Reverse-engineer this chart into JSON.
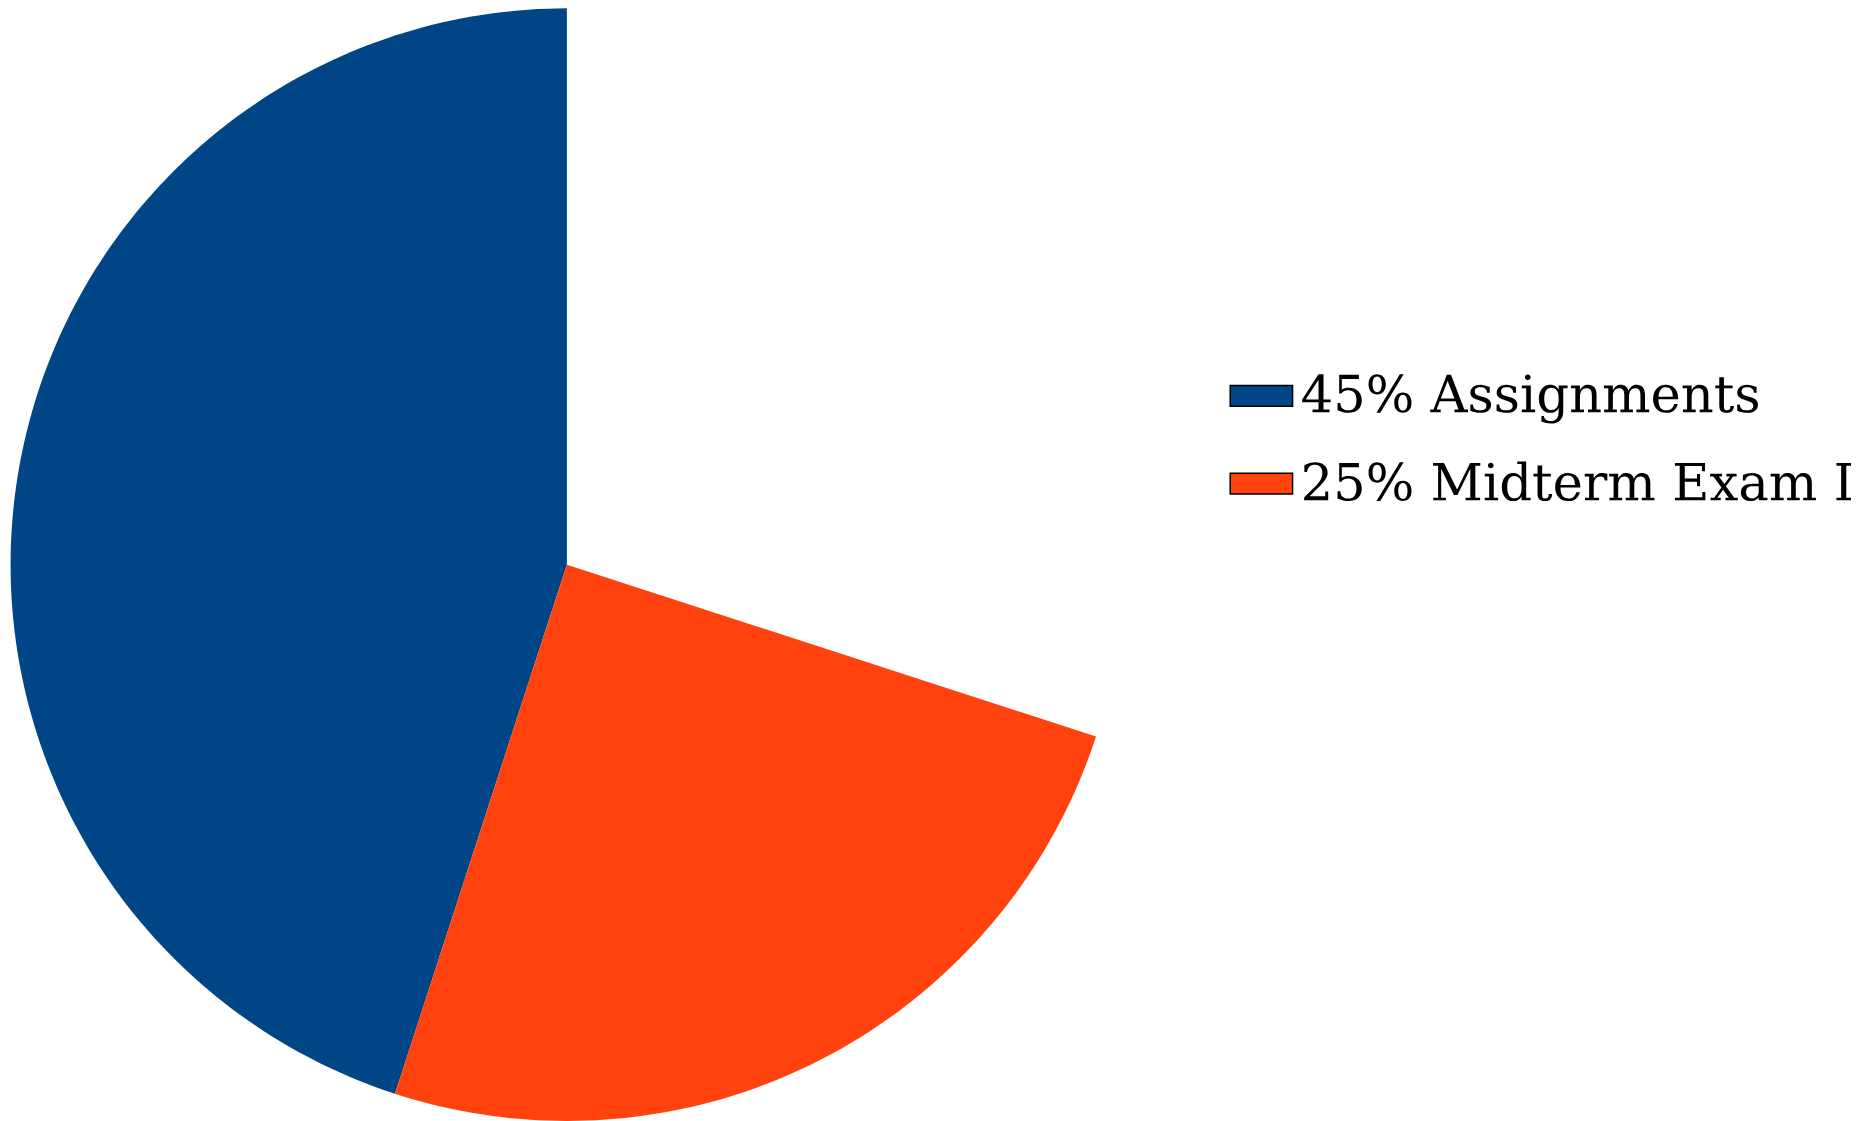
{
  "chart_data": {
    "type": "pie",
    "categories": [
      "45% Assignments",
      "25% Midterm Exam I"
    ],
    "values": [
      45,
      25
    ],
    "colors": [
      "#004586",
      "#ff420e"
    ],
    "legend": "right"
  }
}
